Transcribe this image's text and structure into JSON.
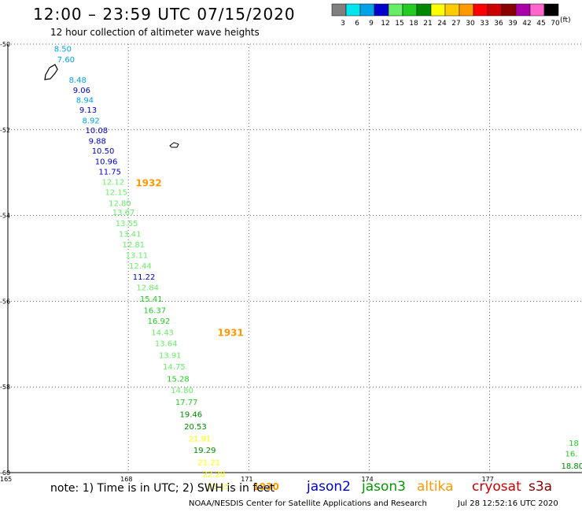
{
  "header": {
    "title": "12:00 – 23:59 UTC 07/15/2020",
    "subtitle": "12 hour collection of altimeter wave heights"
  },
  "footer": {
    "note": "note: 1) Time is in UTC; 2) SWH is in feet",
    "credit": "NOAA/NESDIS Center for Satellite Applications and Research",
    "timestamp": "Jul 28 12:52:16 UTC 2020"
  },
  "satellites": [
    {
      "name": "jason2",
      "color": "#0000cc"
    },
    {
      "name": "jason3",
      "color": "#009900"
    },
    {
      "name": "altika",
      "color": "#ff9900"
    },
    {
      "name": "cryosat",
      "color": "#cc0000"
    },
    {
      "name": "s3a",
      "color": "#880000"
    }
  ],
  "legend": {
    "unit": "(ft)",
    "bins": [
      {
        "label": "3",
        "color": "#808080"
      },
      {
        "label": "6",
        "color": "#00e5ee"
      },
      {
        "label": "9",
        "color": "#00a2e8"
      },
      {
        "label": "12",
        "color": "#0000cd"
      },
      {
        "label": "15",
        "color": "#66ee66"
      },
      {
        "label": "18",
        "color": "#22cc22"
      },
      {
        "label": "21",
        "color": "#008800"
      },
      {
        "label": "24",
        "color": "#ffff00"
      },
      {
        "label": "27",
        "color": "#ffcc00"
      },
      {
        "label": "30",
        "color": "#ff9900"
      },
      {
        "label": "33",
        "color": "#ff0000"
      },
      {
        "label": "36",
        "color": "#cc0000"
      },
      {
        "label": "39",
        "color": "#880000"
      },
      {
        "label": "42",
        "color": "#aa00aa"
      },
      {
        "label": "45",
        "color": "#ff66cc"
      },
      {
        "label": "70",
        "color": "#000000"
      }
    ]
  },
  "chart_data": {
    "type": "scatter",
    "title": "12:00 – 23:59 UTC 07/15/2020",
    "xlim": [
      165,
      179.3
    ],
    "ylim": [
      -60,
      -50
    ],
    "x_ticks": [
      {
        "value": 165,
        "label": "165"
      },
      {
        "value": 168,
        "label": "168"
      },
      {
        "value": 171,
        "label": "171"
      },
      {
        "value": 174,
        "label": "174"
      },
      {
        "value": 177,
        "label": "177"
      }
    ],
    "y_ticks": [
      {
        "value": -50,
        "label": "-50"
      },
      {
        "value": -52,
        "label": "-52"
      },
      {
        "value": -54,
        "label": "-54"
      },
      {
        "value": -56,
        "label": "-56"
      },
      {
        "value": -58,
        "label": "-58"
      },
      {
        "value": -60,
        "label": "-60"
      }
    ],
    "grid": true,
    "series": [
      {
        "name": "altika",
        "points": [
          {
            "lon": 166.15,
            "lat": -50.1,
            "value": "8.50"
          },
          {
            "lon": 166.23,
            "lat": -50.35,
            "value": "7.60"
          },
          {
            "lon": 166.52,
            "lat": -50.83,
            "value": "8.48"
          },
          {
            "lon": 166.62,
            "lat": -51.07,
            "value": "9.06"
          },
          {
            "lon": 166.7,
            "lat": -51.3,
            "value": "8.94"
          },
          {
            "lon": 166.78,
            "lat": -51.53,
            "value": "9.13"
          },
          {
            "lon": 166.85,
            "lat": -51.77,
            "value": "8.92"
          },
          {
            "lon": 166.93,
            "lat": -52.0,
            "value": "10.08"
          },
          {
            "lon": 167.01,
            "lat": -52.25,
            "value": "9.88"
          },
          {
            "lon": 167.09,
            "lat": -52.48,
            "value": "10.50"
          },
          {
            "lon": 167.17,
            "lat": -52.73,
            "value": "10.96"
          },
          {
            "lon": 167.26,
            "lat": -52.97,
            "value": "11.75"
          },
          {
            "lon": 167.34,
            "lat": -53.21,
            "value": "12.12"
          },
          {
            "lon": 167.42,
            "lat": -53.45,
            "value": "12.15"
          },
          {
            "lon": 167.51,
            "lat": -53.7,
            "value": "12.80"
          },
          {
            "lon": 167.6,
            "lat": -53.92,
            "value": "13.67"
          },
          {
            "lon": 167.68,
            "lat": -54.17,
            "value": "13.55"
          },
          {
            "lon": 167.76,
            "lat": -54.42,
            "value": "13.41"
          },
          {
            "lon": 167.85,
            "lat": -54.67,
            "value": "12.81"
          },
          {
            "lon": 167.93,
            "lat": -54.92,
            "value": "13.11"
          },
          {
            "lon": 168.02,
            "lat": -55.17,
            "value": "12.44"
          },
          {
            "lon": 168.11,
            "lat": -55.42,
            "value": "11.22"
          },
          {
            "lon": 168.2,
            "lat": -55.67,
            "value": "12.84"
          },
          {
            "lon": 168.29,
            "lat": -55.94,
            "value": "15.41"
          },
          {
            "lon": 168.38,
            "lat": -56.2,
            "value": "16.37"
          },
          {
            "lon": 168.48,
            "lat": -56.45,
            "value": "16.92"
          },
          {
            "lon": 168.57,
            "lat": -56.72,
            "value": "14.43"
          },
          {
            "lon": 168.66,
            "lat": -56.98,
            "value": "13.64"
          },
          {
            "lon": 168.76,
            "lat": -57.25,
            "value": "13.91"
          },
          {
            "lon": 168.86,
            "lat": -57.52,
            "value": "14.75"
          },
          {
            "lon": 168.96,
            "lat": -57.8,
            "value": "15.28"
          },
          {
            "lon": 169.06,
            "lat": -58.07,
            "value": "14.80"
          },
          {
            "lon": 169.17,
            "lat": -58.35,
            "value": "17.77"
          },
          {
            "lon": 169.28,
            "lat": -58.63,
            "value": "19.46"
          },
          {
            "lon": 169.39,
            "lat": -58.92,
            "value": "20.53"
          },
          {
            "lon": 169.5,
            "lat": -59.2,
            "value": "21.91"
          },
          {
            "lon": 169.62,
            "lat": -59.47,
            "value": "19.29"
          },
          {
            "lon": 169.73,
            "lat": -59.75,
            "value": "21.21"
          },
          {
            "lon": 169.85,
            "lat": -60.03,
            "value": "22.28"
          },
          {
            "lon": 169.97,
            "lat": -60.31,
            "value": "23.15"
          }
        ]
      },
      {
        "name": "jason3",
        "points": [
          {
            "lon": 178.97,
            "lat": -59.3,
            "value": "18"
          },
          {
            "lon": 178.88,
            "lat": -59.55,
            "value": "16."
          },
          {
            "lon": 178.78,
            "lat": -59.83,
            "value": "18.80"
          }
        ]
      }
    ],
    "annotations": [
      {
        "text": "1932",
        "lon": 168.18,
        "lat": -53.23,
        "color": "#ff9900"
      },
      {
        "text": "1931",
        "lon": 170.22,
        "lat": -56.72,
        "color": "#ff9900"
      },
      {
        "text": "1930",
        "lon": 171.1,
        "lat": -60.31,
        "color": "#ff9900"
      }
    ]
  }
}
